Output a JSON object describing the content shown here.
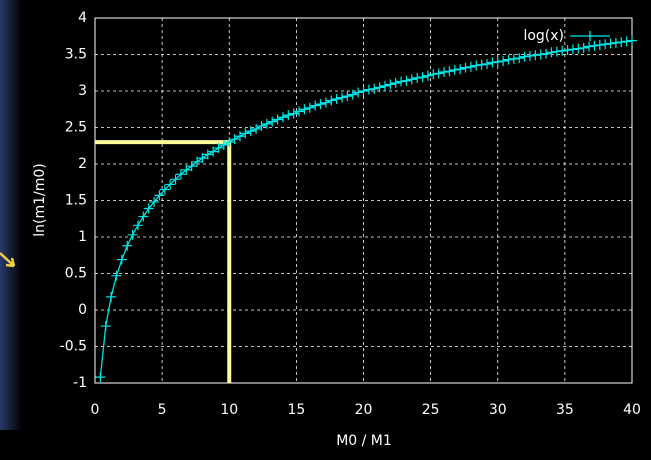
{
  "chart_data": {
    "type": "line",
    "xlabel": "M0 / M1",
    "ylabel": "ln(m1/m0)",
    "x": [
      0.4,
      0.8,
      1.2,
      1.6,
      2.0,
      2.4,
      2.8,
      3.2,
      3.6,
      4.0,
      4.4,
      4.8,
      5.2,
      5.6,
      6.0,
      6.4,
      6.8,
      7.2,
      7.6,
      8.0,
      8.4,
      8.8,
      9.2,
      9.6,
      10.0,
      10.4,
      10.8,
      11.2,
      11.6,
      12.0,
      12.4,
      12.8,
      13.2,
      13.6,
      14.0,
      14.4,
      14.8,
      15.2,
      15.6,
      16.0,
      16.4,
      16.8,
      17.2,
      17.6,
      18.0,
      18.4,
      18.8,
      19.2,
      19.6,
      20.0,
      20.4,
      20.8,
      21.2,
      21.6,
      22.0,
      22.4,
      22.8,
      23.2,
      23.6,
      24.0,
      24.4,
      24.8,
      25.2,
      25.6,
      26.0,
      26.4,
      26.8,
      27.2,
      27.6,
      28.0,
      28.4,
      28.8,
      29.2,
      29.6,
      30.0,
      30.4,
      30.8,
      31.2,
      31.6,
      32.0,
      32.4,
      32.8,
      33.2,
      33.6,
      34.0,
      34.4,
      34.8,
      35.2,
      35.6,
      36.0,
      36.4,
      36.8,
      37.2,
      37.6,
      38.0,
      38.4,
      38.8,
      39.2,
      39.6,
      40.0
    ],
    "series": [
      {
        "name": "log(x)",
        "color": "#00e5e5",
        "values": [
          -0.92,
          -0.22,
          0.18,
          0.47,
          0.69,
          0.88,
          1.03,
          1.16,
          1.28,
          1.39,
          1.48,
          1.57,
          1.65,
          1.72,
          1.79,
          1.86,
          1.92,
          1.97,
          2.03,
          2.08,
          2.13,
          2.17,
          2.22,
          2.26,
          2.3,
          2.34,
          2.38,
          2.42,
          2.45,
          2.48,
          2.52,
          2.55,
          2.58,
          2.61,
          2.64,
          2.67,
          2.69,
          2.72,
          2.75,
          2.77,
          2.8,
          2.82,
          2.84,
          2.87,
          2.89,
          2.91,
          2.93,
          2.95,
          2.98,
          3.0,
          3.02,
          3.03,
          3.05,
          3.07,
          3.09,
          3.11,
          3.13,
          3.14,
          3.16,
          3.18,
          3.19,
          3.21,
          3.23,
          3.24,
          3.26,
          3.27,
          3.29,
          3.3,
          3.32,
          3.33,
          3.35,
          3.36,
          3.37,
          3.39,
          3.4,
          3.41,
          3.43,
          3.44,
          3.45,
          3.47,
          3.48,
          3.49,
          3.5,
          3.51,
          3.53,
          3.54,
          3.55,
          3.56,
          3.57,
          3.58,
          3.59,
          3.61,
          3.62,
          3.63,
          3.64,
          3.65,
          3.66,
          3.67,
          3.68,
          3.69
        ]
      }
    ],
    "reference_point": {
      "x": 10,
      "y": 2.3,
      "color": "#ffff99"
    },
    "xlim": [
      0,
      40
    ],
    "xticks": [
      0,
      5,
      10,
      15,
      20,
      25,
      30,
      35,
      40
    ],
    "ylim": [
      -1,
      4
    ],
    "yticks": [
      -1,
      -0.5,
      0,
      0.5,
      1,
      1.5,
      2,
      2.5,
      3,
      3.5,
      4
    ],
    "grid": true,
    "legend": "top-right"
  }
}
